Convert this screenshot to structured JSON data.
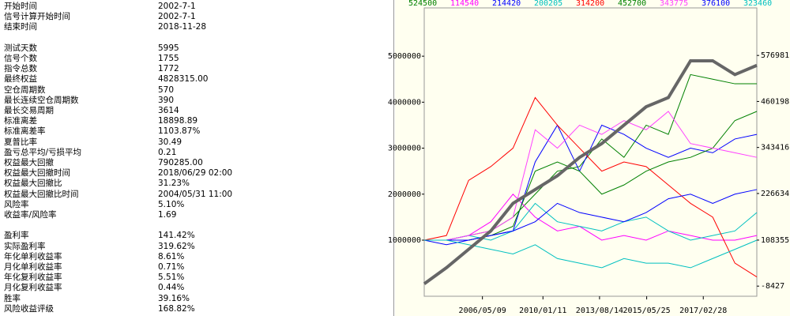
{
  "table": {
    "groups": [
      [
        [
          "开始时间",
          "2002-7-1"
        ],
        [
          "信号计算开始时间",
          "2002-7-1"
        ],
        [
          "结束时间",
          "2018-11-28"
        ]
      ],
      [
        [
          "测试天数",
          "5995"
        ],
        [
          "信号个数",
          "1755"
        ],
        [
          "指令总数",
          "1772"
        ],
        [
          "最终权益",
          "4828315.00"
        ],
        [
          "空仓周期数",
          "570"
        ],
        [
          "最长连续空仓周期数",
          "390"
        ],
        [
          "最长交易周期",
          "3614"
        ],
        [
          "标准离差",
          "18898.89"
        ],
        [
          "标准离差率",
          "1103.87%"
        ],
        [
          "夏普比率",
          "30.49"
        ],
        [
          "盈亏总平均/亏损平均",
          "0.21"
        ],
        [
          "权益最大回撤",
          "790285.00"
        ],
        [
          "权益最大回撤时间",
          "2018/06/29 02:00"
        ],
        [
          "权益最大回撤比",
          "31.23%"
        ],
        [
          "权益最大回撤比时间",
          "2004/05/31 11:00"
        ],
        [
          "风险率",
          "5.10%"
        ],
        [
          "收益率/风险率",
          "1.69"
        ]
      ],
      [
        [
          "盈利率",
          "141.42%"
        ],
        [
          "实际盈利率",
          "319.62%"
        ],
        [
          "年化单利收益率",
          "8.61%"
        ],
        [
          "月化单利收益率",
          "0.71%"
        ],
        [
          "年化复利收益率",
          "5.51%"
        ],
        [
          "月化复利收益率",
          "0.44%"
        ],
        [
          "胜率",
          "39.16%"
        ],
        [
          "风险收益评级",
          "168.82%"
        ]
      ]
    ]
  },
  "chart_data": {
    "type": "line",
    "x": [
      0,
      400,
      800,
      1200,
      1600,
      2000,
      2400,
      2800,
      3200,
      3600,
      4000,
      4400,
      4800,
      5200,
      5600,
      5995
    ],
    "xlim": [
      0,
      5995
    ],
    "xticks": [
      {
        "value": 1049,
        "label": "2006/05/09"
      },
      {
        "value": 2140,
        "label": "2010/01/11"
      },
      {
        "value": 3160,
        "label": "2013/08/14"
      },
      {
        "value": 4010,
        "label": "2015/05/25"
      },
      {
        "value": 5030,
        "label": "2017/02/28"
      }
    ],
    "ylim": [
      -220000,
      6050000
    ],
    "yticks": [
      1000000,
      2000000,
      3000000,
      4000000,
      5000000
    ],
    "y2lim": [
      -34137,
      697612
    ],
    "y2ticks": [
      -8427,
      108355,
      226634,
      343416,
      460198,
      576981
    ],
    "series": [
      {
        "name": "524500",
        "color": "#008000",
        "values": [
          1000000,
          1000000,
          1100000,
          1200000,
          1500000,
          2000000,
          2500000,
          2600000,
          3200000,
          2800000,
          3500000,
          3300000,
          4600000,
          4500000,
          4400000,
          4400000
        ]
      },
      {
        "name": "114540",
        "color": "#ff00ff",
        "values": [
          1000000,
          1000000,
          1100000,
          1400000,
          2000000,
          1500000,
          1200000,
          1300000,
          1000000,
          1100000,
          1000000,
          1200000,
          1100000,
          1000000,
          1000000,
          1100000
        ]
      },
      {
        "name": "214420",
        "color": "#0000ff",
        "values": [
          1000000,
          900000,
          1000000,
          1100000,
          1200000,
          2700000,
          3500000,
          2500000,
          3500000,
          3300000,
          3000000,
          2800000,
          3000000,
          2900000,
          3200000,
          3300000
        ]
      },
      {
        "name": "200205",
        "color": "#00c0c0",
        "values": [
          1000000,
          1000000,
          1100000,
          1000000,
          1200000,
          1800000,
          1400000,
          1300000,
          1200000,
          1400000,
          1500000,
          1200000,
          1000000,
          1100000,
          1200000,
          1600000
        ]
      },
      {
        "name": "314200",
        "color": "#ff0000",
        "values": [
          1000000,
          1100000,
          2300000,
          2600000,
          3000000,
          4100000,
          3500000,
          3000000,
          2500000,
          2700000,
          2600000,
          2200000,
          1800000,
          1500000,
          500000,
          200000
        ]
      },
      {
        "name": "452700",
        "color": "#008000",
        "values": [
          1000000,
          1000000,
          1000000,
          1100000,
          1300000,
          2500000,
          2700000,
          2500000,
          2000000,
          2200000,
          2500000,
          2700000,
          2800000,
          3000000,
          3600000,
          3800000
        ]
      },
      {
        "name": "343775",
        "color": "#ff40ff",
        "values": [
          1000000,
          1000000,
          1100000,
          1200000,
          1500000,
          3400000,
          3000000,
          3500000,
          3300000,
          3600000,
          3400000,
          3800000,
          3100000,
          3000000,
          2900000,
          2800000
        ]
      },
      {
        "name": "376100",
        "color": "#0000ff",
        "values": [
          1000000,
          1000000,
          1000000,
          1100000,
          1200000,
          1400000,
          1800000,
          1600000,
          1500000,
          1400000,
          1600000,
          1900000,
          2000000,
          1800000,
          2000000,
          2100000
        ]
      },
      {
        "name": "323460",
        "color": "#00c0c0",
        "values": [
          1000000,
          1000000,
          900000,
          800000,
          700000,
          900000,
          600000,
          500000,
          400000,
          600000,
          500000,
          500000,
          400000,
          600000,
          800000,
          1000000
        ]
      },
      {
        "color": "#666666",
        "width": 4,
        "values": [
          50000,
          400000,
          800000,
          1200000,
          1800000,
          2100000,
          2400000,
          2800000,
          3100000,
          3500000,
          3900000,
          4100000,
          4900000,
          4900000,
          4600000,
          4800000
        ]
      }
    ]
  }
}
